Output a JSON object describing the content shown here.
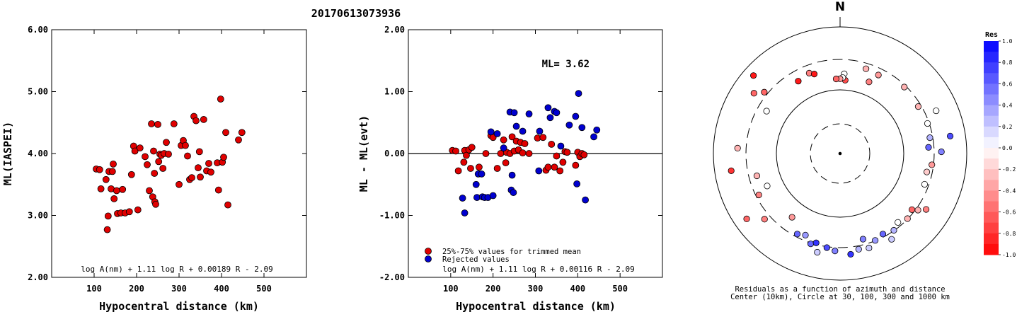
{
  "title": "20170613073936",
  "chart_data": [
    {
      "type": "scatter",
      "name": "ml-vs-distance",
      "xlabel": "Hypocentral distance (km)",
      "ylabel": "ML(IASPEI)",
      "xlim": [
        0,
        600
      ],
      "ylim": [
        2.0,
        6.0
      ],
      "xticks": [
        100,
        200,
        300,
        400,
        500
      ],
      "yticks": [
        2.0,
        3.0,
        4.0,
        5.0,
        6.0
      ],
      "ytick_labels": [
        "2.00",
        "3.00",
        "4.00",
        "5.00",
        "6.00"
      ],
      "formula": "log A(nm) + 1.11 log R + 0.00189 R - 2.09",
      "point_color": "#e00000",
      "points": [
        [
          105,
          3.75
        ],
        [
          113,
          3.74
        ],
        [
          116,
          3.43
        ],
        [
          128,
          3.58
        ],
        [
          131,
          2.77
        ],
        [
          133,
          2.99
        ],
        [
          135,
          3.71
        ],
        [
          140,
          3.43
        ],
        [
          143,
          3.71
        ],
        [
          145,
          3.83
        ],
        [
          147,
          3.27
        ],
        [
          153,
          3.4
        ],
        [
          155,
          3.03
        ],
        [
          163,
          3.04
        ],
        [
          167,
          3.42
        ],
        [
          173,
          3.04
        ],
        [
          183,
          3.06
        ],
        [
          188,
          3.66
        ],
        [
          193,
          4.12
        ],
        [
          196,
          4.04
        ],
        [
          203,
          3.09
        ],
        [
          208,
          4.09
        ],
        [
          220,
          3.95
        ],
        [
          225,
          3.82
        ],
        [
          230,
          3.4
        ],
        [
          235,
          4.48
        ],
        [
          238,
          3.3
        ],
        [
          240,
          4.04
        ],
        [
          242,
          3.68
        ],
        [
          243,
          3.22
        ],
        [
          245,
          3.18
        ],
        [
          250,
          4.47
        ],
        [
          252,
          3.87
        ],
        [
          255,
          3.99
        ],
        [
          258,
          3.97
        ],
        [
          262,
          3.76
        ],
        [
          265,
          4.0
        ],
        [
          270,
          4.18
        ],
        [
          275,
          3.99
        ],
        [
          288,
          4.48
        ],
        [
          300,
          3.5
        ],
        [
          305,
          4.13
        ],
        [
          310,
          4.21
        ],
        [
          315,
          4.13
        ],
        [
          320,
          3.96
        ],
        [
          325,
          3.58
        ],
        [
          330,
          3.61
        ],
        [
          335,
          4.6
        ],
        [
          340,
          4.53
        ],
        [
          345,
          3.77
        ],
        [
          348,
          4.03
        ],
        [
          350,
          3.62
        ],
        [
          358,
          4.55
        ],
        [
          365,
          3.72
        ],
        [
          370,
          3.84
        ],
        [
          375,
          3.7
        ],
        [
          390,
          3.85
        ],
        [
          393,
          3.41
        ],
        [
          398,
          4.88
        ],
        [
          402,
          3.86
        ],
        [
          405,
          3.94
        ],
        [
          410,
          4.34
        ],
        [
          415,
          3.17
        ],
        [
          440,
          4.22
        ],
        [
          448,
          4.34
        ]
      ]
    },
    {
      "type": "scatter",
      "name": "residual-vs-distance",
      "xlabel": "Hypocentral distance (km)",
      "ylabel": "ML - ML(evt)",
      "xlim": [
        0,
        600
      ],
      "ylim": [
        -2.0,
        2.0
      ],
      "xticks": [
        100,
        200,
        300,
        400,
        500
      ],
      "yticks": [
        -2.0,
        -1.0,
        0.0,
        1.0,
        2.0
      ],
      "ytick_labels": [
        "-2.00",
        "-1.00",
        "0.00",
        "1.00",
        "2.00"
      ],
      "reference_line": 0.0,
      "ml_label": "ML= 3.62",
      "legend": [
        {
          "label": "25%-75% values for trimmed mean",
          "color": "#e00000"
        },
        {
          "label": "Rejected values",
          "color": "#0000d0"
        }
      ],
      "formula": "log A(nm) + 1.11 log R + 0.00116 R - 2.09",
      "series": [
        {
          "color": "#e00000",
          "points": [
            [
              104,
              0.05
            ],
            [
              112,
              0.04
            ],
            [
              118,
              -0.28
            ],
            [
              131,
              -0.14
            ],
            [
              133,
              0.05
            ],
            [
              137,
              -0.03
            ],
            [
              143,
              0.06
            ],
            [
              147,
              -0.24
            ],
            [
              150,
              0.1
            ],
            [
              167,
              -0.22
            ],
            [
              183,
              0.0
            ],
            [
              195,
              0.29
            ],
            [
              200,
              0.26
            ],
            [
              210,
              -0.24
            ],
            [
              218,
              0.0
            ],
            [
              225,
              0.22
            ],
            [
              230,
              -0.15
            ],
            [
              232,
              0.02
            ],
            [
              240,
              0.0
            ],
            [
              245,
              0.27
            ],
            [
              250,
              0.04
            ],
            [
              255,
              0.2
            ],
            [
              260,
              0.06
            ],
            [
              265,
              0.18
            ],
            [
              270,
              0.01
            ],
            [
              275,
              0.16
            ],
            [
              285,
              0.0
            ],
            [
              305,
              0.25
            ],
            [
              318,
              0.26
            ],
            [
              325,
              -0.27
            ],
            [
              330,
              -0.22
            ],
            [
              338,
              0.15
            ],
            [
              345,
              -0.22
            ],
            [
              350,
              -0.04
            ],
            [
              358,
              -0.28
            ],
            [
              365,
              -0.14
            ],
            [
              370,
              0.03
            ],
            [
              375,
              0.02
            ],
            [
              395,
              -0.19
            ],
            [
              400,
              0.02
            ],
            [
              405,
              -0.05
            ],
            [
              410,
              0.0
            ],
            [
              415,
              -0.02
            ]
          ]
        },
        {
          "color": "#0000d0",
          "points": [
            [
              128,
              -0.72
            ],
            [
              133,
              -0.96
            ],
            [
              160,
              -0.5
            ],
            [
              162,
              -0.71
            ],
            [
              165,
              -0.33
            ],
            [
              173,
              -0.33
            ],
            [
              175,
              -0.7
            ],
            [
              180,
              -0.71
            ],
            [
              188,
              -0.71
            ],
            [
              195,
              0.35
            ],
            [
              200,
              -0.68
            ],
            [
              210,
              0.32
            ],
            [
              225,
              0.09
            ],
            [
              240,
              0.67
            ],
            [
              243,
              -0.59
            ],
            [
              245,
              -0.35
            ],
            [
              248,
              -0.63
            ],
            [
              250,
              0.66
            ],
            [
              255,
              0.44
            ],
            [
              270,
              0.36
            ],
            [
              285,
              0.64
            ],
            [
              308,
              -0.28
            ],
            [
              310,
              0.36
            ],
            [
              330,
              0.74
            ],
            [
              335,
              0.58
            ],
            [
              345,
              0.68
            ],
            [
              350,
              0.66
            ],
            [
              360,
              0.12
            ],
            [
              380,
              0.46
            ],
            [
              395,
              0.6
            ],
            [
              398,
              -0.49
            ],
            [
              402,
              0.97
            ],
            [
              410,
              0.42
            ],
            [
              418,
              -0.75
            ],
            [
              438,
              0.27
            ],
            [
              445,
              0.38
            ]
          ]
        }
      ]
    },
    {
      "type": "polar-scatter",
      "name": "azimuth-residuals",
      "north_label": "N",
      "caption_line1": "Residuals as a function of azimuth and distance",
      "caption_line2": "Center (10km), Circle at 30, 100, 300 and 1000 km",
      "rings_km": [
        30,
        100,
        300,
        1000
      ],
      "colorbar": {
        "title": "Res",
        "ticks": [
          1.0,
          0.8,
          0.6,
          0.4,
          0.2,
          0.0,
          -0.2,
          -0.4,
          -0.6,
          -0.8,
          -1.0
        ],
        "tick_labels": [
          "1.0",
          "0.8",
          "0.6",
          "0.4",
          "0.2",
          "0.0",
          "-0.2",
          "-0.4",
          "-0.6",
          "-0.8",
          "-1.0"
        ],
        "max_color": "#0000ff",
        "min_color": "#ff0000"
      },
      "stations": [
        {
          "az": -30,
          "d": 0.66,
          "res": -0.9
        },
        {
          "az": -21,
          "d": 0.68,
          "res": -0.5
        },
        {
          "az": -18,
          "d": 0.66,
          "res": -0.9
        },
        {
          "az": -55,
          "d": 0.83,
          "res": -0.6
        },
        {
          "az": -51,
          "d": 0.77,
          "res": -0.6
        },
        {
          "az": -48,
          "d": 0.92,
          "res": -0.9
        },
        {
          "az": -60,
          "d": 0.67,
          "res": 0.0
        },
        {
          "az": -87,
          "d": 0.81,
          "res": -0.3
        },
        {
          "az": -99,
          "d": 0.87,
          "res": -0.8
        },
        {
          "az": -105,
          "d": 0.68,
          "res": -0.3
        },
        {
          "az": -114,
          "d": 0.63,
          "res": 0.0
        },
        {
          "az": -117,
          "d": 0.72,
          "res": -0.5
        },
        {
          "az": -125,
          "d": 0.9,
          "res": -0.6
        },
        {
          "az": -131,
          "d": 0.79,
          "res": -0.5
        },
        {
          "az": -143,
          "d": 0.63,
          "res": -0.4
        },
        {
          "az": -152,
          "d": 0.72,
          "res": 0.6
        },
        {
          "az": -157,
          "d": 0.7,
          "res": 0.4
        },
        {
          "az": -162,
          "d": 0.75,
          "res": 0.6
        },
        {
          "az": -165,
          "d": 0.73,
          "res": 0.8
        },
        {
          "az": -167,
          "d": 0.8,
          "res": 0.2
        },
        {
          "az": -172,
          "d": 0.75,
          "res": 0.7
        },
        {
          "az": -177,
          "d": 0.77,
          "res": 0.5
        },
        {
          "az": 174,
          "d": 0.8,
          "res": 0.8
        },
        {
          "az": 169,
          "d": 0.77,
          "res": 0.3
        },
        {
          "az": 165,
          "d": 0.7,
          "res": 0.5
        },
        {
          "az": 163,
          "d": 0.78,
          "res": 0.2
        },
        {
          "az": 158,
          "d": 0.74,
          "res": 0.4
        },
        {
          "az": 152,
          "d": 0.72,
          "res": 0.6
        },
        {
          "az": 149,
          "d": 0.79,
          "res": 0.2
        },
        {
          "az": 145,
          "d": 0.74,
          "res": 0.3
        },
        {
          "az": 140,
          "d": 0.71,
          "res": 0.0
        },
        {
          "az": 134,
          "d": 0.74,
          "res": -0.3
        },
        {
          "az": 128,
          "d": 0.72,
          "res": -0.6
        },
        {
          "az": 126,
          "d": 0.76,
          "res": -0.3
        },
        {
          "az": 123,
          "d": 0.81,
          "res": -0.5
        },
        {
          "az": 110,
          "d": 0.71,
          "res": 0.0
        },
        {
          "az": 102,
          "d": 0.7,
          "res": -0.2
        },
        {
          "az": 97,
          "d": 0.73,
          "res": -0.4
        },
        {
          "az": 89,
          "d": 0.8,
          "res": 0.5
        },
        {
          "az": 86,
          "d": 0.7,
          "res": 0.6
        },
        {
          "az": 81,
          "d": 0.88,
          "res": 0.7
        },
        {
          "az": 80,
          "d": 0.72,
          "res": 0.3
        },
        {
          "az": 71,
          "d": 0.73,
          "res": 0.0
        },
        {
          "az": 66,
          "d": 0.83,
          "res": 0.0
        },
        {
          "az": 59,
          "d": 0.72,
          "res": -0.3
        },
        {
          "az": 44,
          "d": 0.73,
          "res": -0.3
        },
        {
          "az": 26,
          "d": 0.69,
          "res": -0.4
        },
        {
          "az": 22,
          "d": 0.61,
          "res": -0.5
        },
        {
          "az": 17,
          "d": 0.7,
          "res": -0.3
        },
        {
          "az": 3,
          "d": 0.63,
          "res": 0.0
        },
        {
          "az": 4,
          "d": 0.58,
          "res": -0.7
        },
        {
          "az": 2,
          "d": 0.6,
          "res": 0.0
        },
        {
          "az": 0,
          "d": 0.59,
          "res": -0.4
        },
        {
          "az": -3,
          "d": 0.59,
          "res": -0.6
        }
      ]
    }
  ]
}
